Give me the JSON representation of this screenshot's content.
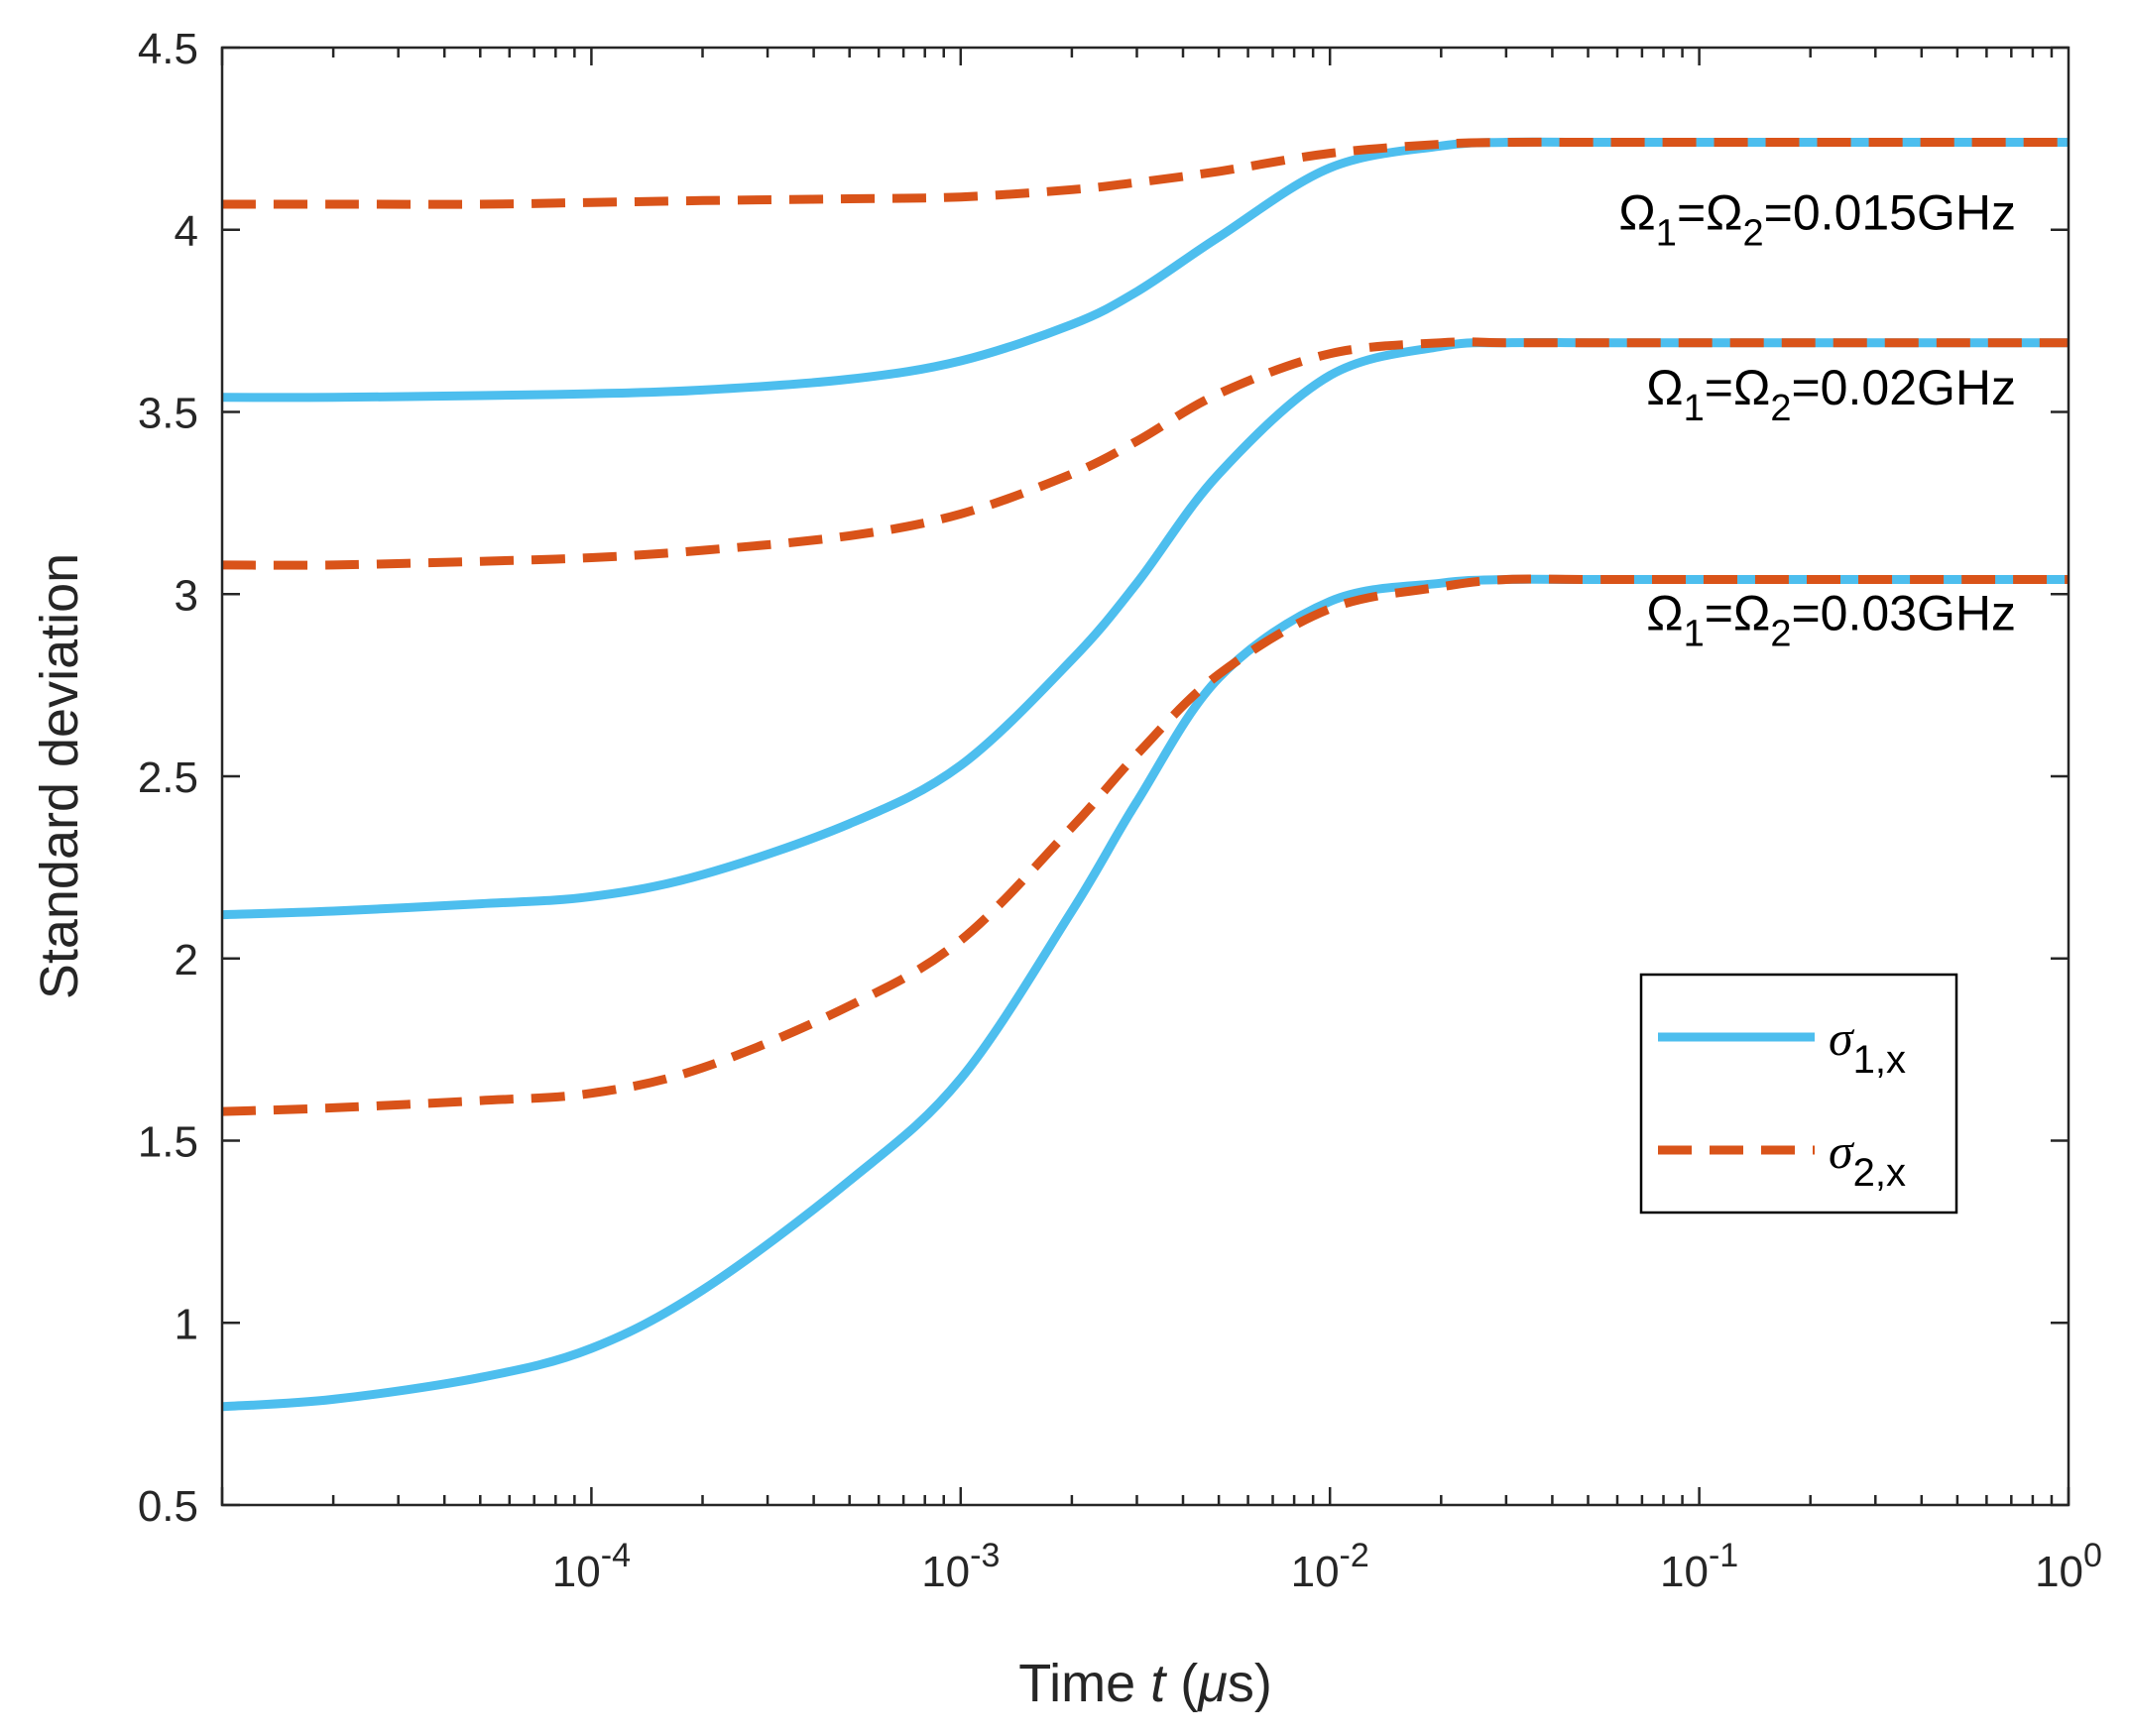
{
  "chart_data": {
    "type": "line",
    "xscale": "log",
    "xlim": [
      1e-05,
      1
    ],
    "ylim": [
      0.5,
      4.5
    ],
    "xlabel_prefix": "Time  ",
    "xlabel_var": "t",
    "xlabel_unit_open": " (",
    "xlabel_mu": "μ",
    "xlabel_unit_close": "s)",
    "ylabel": "Standard deviation",
    "yticks": [
      0.5,
      1,
      1.5,
      2,
      2.5,
      3,
      3.5,
      4,
      4.5
    ],
    "ytick_labels": [
      "0.5",
      "1",
      "1.5",
      "2",
      "2.5",
      "3",
      "3.5",
      "4",
      "4.5"
    ],
    "xticks": [
      {
        "value": 0.0001,
        "base": "10",
        "exp": "-4"
      },
      {
        "value": 0.001,
        "base": "10",
        "exp": "-3"
      },
      {
        "value": 0.01,
        "base": "10",
        "exp": "-2"
      },
      {
        "value": 0.1,
        "base": "10",
        "exp": "-1"
      },
      {
        "value": 1,
        "base": "10",
        "exp": "0"
      }
    ],
    "colors": {
      "sigma1": "#4DBEEE",
      "sigma2": "#D95319"
    },
    "legend": {
      "position": "center-right",
      "entries": [
        {
          "symbol": "σ",
          "sub": "1,x",
          "style": "solid",
          "color": "#4DBEEE"
        },
        {
          "symbol": "σ",
          "sub": "2,x",
          "style": "dashed",
          "color": "#D95319"
        }
      ]
    },
    "annotations": [
      {
        "omega": "Ω",
        "sub1": "1",
        "sub2": "2",
        "value": "=0.015GHz",
        "y": 4.05
      },
      {
        "omega": "Ω",
        "sub1": "1",
        "sub2": "2",
        "value": "=0.02GHz",
        "y": 3.57
      },
      {
        "omega": "Ω",
        "sub1": "1",
        "sub2": "2",
        "value": "=0.03GHz",
        "y": 2.95
      }
    ],
    "x": [
      1e-05,
      2e-05,
      5e-05,
      0.0001,
      0.0002,
      0.0005,
      0.001,
      0.002,
      0.003,
      0.005,
      0.01,
      0.02,
      0.03,
      0.05,
      0.1,
      1
    ],
    "series": [
      {
        "name": "σ1,x Ω=0.015GHz",
        "color": "#4DBEEE",
        "style": "solid",
        "values": [
          3.54,
          3.54,
          3.545,
          3.55,
          3.56,
          3.59,
          3.64,
          3.74,
          3.83,
          3.98,
          4.17,
          4.23,
          4.24,
          4.24,
          4.24,
          4.24
        ]
      },
      {
        "name": "σ2,x Ω=0.015GHz",
        "color": "#D95319",
        "style": "dashed",
        "values": [
          4.07,
          4.07,
          4.07,
          4.075,
          4.08,
          4.085,
          4.09,
          4.11,
          4.13,
          4.16,
          4.21,
          4.235,
          4.24,
          4.24,
          4.24,
          4.24
        ]
      },
      {
        "name": "σ1,x Ω=0.02GHz",
        "color": "#4DBEEE",
        "style": "solid",
        "values": [
          2.12,
          2.13,
          2.15,
          2.17,
          2.23,
          2.37,
          2.53,
          2.82,
          3.03,
          3.33,
          3.6,
          3.68,
          3.69,
          3.69,
          3.69,
          3.69
        ]
      },
      {
        "name": "σ2,x Ω=0.02GHz",
        "color": "#D95319",
        "style": "dashed",
        "values": [
          3.08,
          3.08,
          3.09,
          3.1,
          3.12,
          3.16,
          3.22,
          3.33,
          3.42,
          3.55,
          3.66,
          3.69,
          3.69,
          3.69,
          3.69,
          3.69
        ]
      },
      {
        "name": "σ1,x Ω=0.03GHz",
        "color": "#4DBEEE",
        "style": "solid",
        "values": [
          0.77,
          0.79,
          0.85,
          0.93,
          1.09,
          1.39,
          1.67,
          2.13,
          2.43,
          2.77,
          2.98,
          3.03,
          3.04,
          3.04,
          3.04,
          3.04
        ]
      },
      {
        "name": "σ2,x Ω=0.03GHz",
        "color": "#D95319",
        "style": "dashed",
        "values": [
          1.58,
          1.59,
          1.61,
          1.63,
          1.7,
          1.87,
          2.05,
          2.36,
          2.56,
          2.78,
          2.96,
          3.02,
          3.04,
          3.04,
          3.04,
          3.04
        ]
      }
    ]
  }
}
